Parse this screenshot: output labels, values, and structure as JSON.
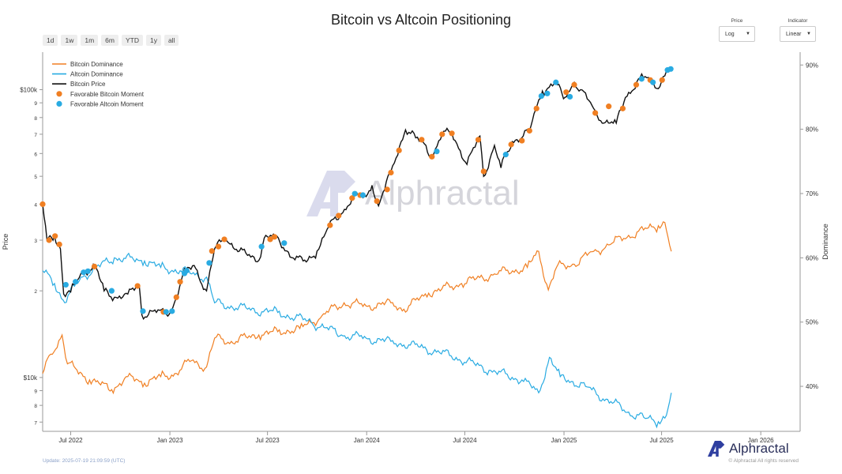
{
  "title": "Bitcoin vs Altcoin Positioning",
  "ranges": [
    "1d",
    "1w",
    "1m",
    "6m",
    "YTD",
    "1y",
    "all"
  ],
  "price_control": {
    "label": "Price",
    "value": "Log"
  },
  "indicator_control": {
    "label": "Indicator",
    "value": "Linear"
  },
  "footer": {
    "update": "Update: 2025-07-19 21:09:59 (UTC)",
    "brand": "Alphractal",
    "copyright": "© Alphractal All rights reserved"
  },
  "watermark": "Alphractal",
  "colors": {
    "bitcoin_dominance": "#f07f22",
    "altcoin_dominance": "#29abe2",
    "bitcoin_price": "#111111",
    "favorable_bitcoin": "#f07f22",
    "favorable_altcoin": "#29abe2"
  },
  "chart_data": {
    "type": "line",
    "title": "Bitcoin vs Altcoin Positioning",
    "ylabel_left": "Price",
    "ylabel_right": "Dominance",
    "y_left_scale": "log",
    "y_left_range": [
      6500,
      135000
    ],
    "y_right_range": [
      33,
      92
    ],
    "x_range": [
      "2022-05-10",
      "2026-03-15"
    ],
    "grid": false,
    "legend_position": "top-left",
    "x_ticks": [
      "Jul 2022",
      "Jan 2023",
      "Jul 2023",
      "Jan 2024",
      "Jul 2024",
      "Jan 2025",
      "Jul 2025",
      "Jan 2026"
    ],
    "y_left_ticks": [
      "$10k",
      "9",
      "8",
      "7",
      "$100k",
      "9",
      "8",
      "7",
      "6",
      "5",
      "4",
      "3",
      "2",
      "9",
      "8",
      "7"
    ],
    "y_right_ticks": [
      "90%",
      "80%",
      "70%",
      "60%",
      "50%",
      "40%"
    ],
    "legend": [
      "Bitcoin Dominance",
      "Altcoin Dominance",
      "Bitcoin Price",
      "Favorable Bitcoin Moment",
      "Favorable Altcoin Moment"
    ],
    "series": [
      {
        "name": "Bitcoin Price",
        "axis": "left",
        "points": [
          [
            "2022-05-10",
            40000
          ],
          [
            "2022-05-18",
            30000
          ],
          [
            "2022-06-01",
            31000
          ],
          [
            "2022-06-12",
            28000
          ],
          [
            "2022-06-18",
            19500
          ],
          [
            "2022-07-01",
            19800
          ],
          [
            "2022-07-20",
            23000
          ],
          [
            "2022-08-15",
            24500
          ],
          [
            "2022-09-01",
            20000
          ],
          [
            "2022-09-20",
            19000
          ],
          [
            "2022-10-15",
            19500
          ],
          [
            "2022-11-05",
            21000
          ],
          [
            "2022-11-10",
            16500
          ],
          [
            "2022-12-01",
            17000
          ],
          [
            "2022-12-31",
            16600
          ],
          [
            "2023-01-13",
            19000
          ],
          [
            "2023-01-25",
            22800
          ],
          [
            "2023-02-15",
            24500
          ],
          [
            "2023-03-10",
            20000
          ],
          [
            "2023-03-25",
            28000
          ],
          [
            "2023-04-14",
            30500
          ],
          [
            "2023-05-10",
            27500
          ],
          [
            "2023-06-15",
            25500
          ],
          [
            "2023-06-25",
            30500
          ],
          [
            "2023-07-15",
            31000
          ],
          [
            "2023-08-18",
            26000
          ],
          [
            "2023-09-11",
            25200
          ],
          [
            "2023-10-01",
            27500
          ],
          [
            "2023-10-23",
            33500
          ],
          [
            "2023-11-15",
            37000
          ],
          [
            "2023-12-05",
            42000
          ],
          [
            "2023-12-31",
            42500
          ],
          [
            "2024-01-11",
            46500
          ],
          [
            "2024-01-23",
            39500
          ],
          [
            "2024-02-15",
            52000
          ],
          [
            "2024-03-05",
            66000
          ],
          [
            "2024-03-13",
            72500
          ],
          [
            "2024-04-01",
            68000
          ],
          [
            "2024-04-20",
            64000
          ],
          [
            "2024-05-01",
            58000
          ],
          [
            "2024-05-20",
            70000
          ],
          [
            "2024-06-07",
            71000
          ],
          [
            "2024-07-05",
            55000
          ],
          [
            "2024-07-29",
            69000
          ],
          [
            "2024-08-05",
            50000
          ],
          [
            "2024-08-25",
            64000
          ],
          [
            "2024-09-06",
            53500
          ],
          [
            "2024-09-27",
            66000
          ],
          [
            "2024-10-29",
            72000
          ],
          [
            "2024-11-12",
            88000
          ],
          [
            "2024-11-22",
            99000
          ],
          [
            "2024-12-17",
            106000
          ],
          [
            "2024-12-31",
            93000
          ],
          [
            "2025-01-20",
            106000
          ],
          [
            "2025-02-01",
            100000
          ],
          [
            "2025-02-25",
            86000
          ],
          [
            "2025-03-10",
            78000
          ],
          [
            "2025-04-08",
            76500
          ],
          [
            "2025-04-25",
            94000
          ],
          [
            "2025-05-22",
            110000
          ],
          [
            "2025-06-10",
            109000
          ],
          [
            "2025-06-22",
            101000
          ],
          [
            "2025-07-01",
            107000
          ],
          [
            "2025-07-10",
            116000
          ],
          [
            "2025-07-19",
            118000
          ]
        ]
      },
      {
        "name": "Bitcoin Dominance",
        "axis": "right",
        "points": [
          [
            "2022-05-10",
            42
          ],
          [
            "2022-05-25",
            45
          ],
          [
            "2022-06-15",
            48
          ],
          [
            "2022-06-25",
            43.5
          ],
          [
            "2022-08-05",
            41
          ],
          [
            "2022-09-15",
            39.5
          ],
          [
            "2022-10-15",
            41.5
          ],
          [
            "2022-11-15",
            40.5
          ],
          [
            "2022-12-15",
            41.5
          ],
          [
            "2023-01-10",
            42
          ],
          [
            "2023-02-10",
            44
          ],
          [
            "2023-03-10",
            43
          ],
          [
            "2023-03-25",
            47.5
          ],
          [
            "2023-04-25",
            47
          ],
          [
            "2023-06-15",
            48
          ],
          [
            "2023-07-20",
            48.5
          ],
          [
            "2023-08-30",
            49
          ],
          [
            "2023-10-10",
            51
          ],
          [
            "2023-11-20",
            53
          ],
          [
            "2023-12-31",
            52.5
          ],
          [
            "2024-02-15",
            53
          ],
          [
            "2024-03-10",
            52
          ],
          [
            "2024-04-25",
            54.5
          ],
          [
            "2024-06-25",
            56
          ],
          [
            "2024-08-25",
            57.5
          ],
          [
            "2024-10-25",
            58.5
          ],
          [
            "2024-11-15",
            61
          ],
          [
            "2024-12-03",
            55
          ],
          [
            "2024-12-18",
            58.5
          ],
          [
            "2025-01-20",
            59
          ],
          [
            "2025-02-25",
            61
          ],
          [
            "2025-03-25",
            62
          ],
          [
            "2025-05-01",
            63.5
          ],
          [
            "2025-06-25",
            65
          ],
          [
            "2025-07-07",
            65.5
          ],
          [
            "2025-07-19",
            61
          ]
        ]
      },
      {
        "name": "Altcoin Dominance",
        "axis": "right",
        "points": [
          [
            "2022-05-10",
            58
          ],
          [
            "2022-06-01",
            56
          ],
          [
            "2022-06-20",
            53
          ],
          [
            "2022-07-20",
            57
          ],
          [
            "2022-09-20",
            60
          ],
          [
            "2022-11-15",
            59.5
          ],
          [
            "2022-12-15",
            58.5
          ],
          [
            "2023-01-20",
            58
          ],
          [
            "2023-03-10",
            57
          ],
          [
            "2023-03-25",
            53
          ],
          [
            "2023-05-25",
            52
          ],
          [
            "2023-07-20",
            51.5
          ],
          [
            "2023-09-20",
            50
          ],
          [
            "2023-11-15",
            48
          ],
          [
            "2023-12-31",
            47.5
          ],
          [
            "2024-02-15",
            47
          ],
          [
            "2024-04-15",
            46
          ],
          [
            "2024-06-15",
            44.5
          ],
          [
            "2024-08-15",
            42.5
          ],
          [
            "2024-10-15",
            41
          ],
          [
            "2024-11-15",
            39
          ],
          [
            "2024-12-05",
            44.5
          ],
          [
            "2024-12-25",
            41.5
          ],
          [
            "2025-02-10",
            40
          ],
          [
            "2025-03-20",
            38
          ],
          [
            "2025-05-01",
            36
          ],
          [
            "2025-06-01",
            35
          ],
          [
            "2025-06-25",
            34.5
          ],
          [
            "2025-07-10",
            35.5
          ],
          [
            "2025-07-19",
            39
          ]
        ]
      }
    ],
    "favorable_bitcoin_moments": [
      [
        "2022-05-10",
        40000
      ],
      [
        "2022-05-22",
        30000
      ],
      [
        "2022-06-02",
        31000
      ],
      [
        "2022-06-10",
        29000
      ],
      [
        "2022-08-14",
        24300
      ],
      [
        "2022-11-02",
        20800
      ],
      [
        "2022-12-20",
        16900
      ],
      [
        "2023-01-13",
        19000
      ],
      [
        "2023-01-20",
        21500
      ],
      [
        "2023-03-20",
        27500
      ],
      [
        "2023-04-01",
        28500
      ],
      [
        "2023-04-12",
        30200
      ],
      [
        "2023-07-06",
        30200
      ],
      [
        "2023-07-14",
        30800
      ],
      [
        "2023-10-25",
        33800
      ],
      [
        "2023-11-10",
        36500
      ],
      [
        "2023-12-05",
        42000
      ],
      [
        "2023-12-20",
        43000
      ],
      [
        "2024-01-20",
        41000
      ],
      [
        "2024-02-08",
        45000
      ],
      [
        "2024-02-15",
        51500
      ],
      [
        "2024-03-01",
        61500
      ],
      [
        "2024-04-12",
        67000
      ],
      [
        "2024-05-01",
        58500
      ],
      [
        "2024-05-20",
        70000
      ],
      [
        "2024-06-07",
        70500
      ],
      [
        "2024-07-26",
        67000
      ],
      [
        "2024-08-05",
        52000
      ],
      [
        "2024-09-25",
        64500
      ],
      [
        "2024-10-15",
        66500
      ],
      [
        "2024-10-29",
        72000
      ],
      [
        "2024-11-11",
        86000
      ],
      [
        "2025-01-05",
        98000
      ],
      [
        "2025-01-20",
        104000
      ],
      [
        "2025-02-28",
        83000
      ],
      [
        "2025-03-25",
        87500
      ],
      [
        "2025-04-20",
        86000
      ],
      [
        "2025-05-15",
        104000
      ],
      [
        "2025-06-10",
        108000
      ],
      [
        "2025-07-02",
        108000
      ]
    ],
    "favorable_altcoin_moments": [
      [
        "2022-06-22",
        21000
      ],
      [
        "2022-07-10",
        21500
      ],
      [
        "2022-07-25",
        23200
      ],
      [
        "2022-08-02",
        23400
      ],
      [
        "2022-09-15",
        20000
      ],
      [
        "2022-11-12",
        17000
      ],
      [
        "2022-12-25",
        16900
      ],
      [
        "2023-01-05",
        17000
      ],
      [
        "2023-01-28",
        23000
      ],
      [
        "2023-02-01",
        23500
      ],
      [
        "2023-03-15",
        25000
      ],
      [
        "2023-06-20",
        28500
      ],
      [
        "2023-08-01",
        29300
      ],
      [
        "2023-12-10",
        43500
      ],
      [
        "2023-12-25",
        43000
      ],
      [
        "2024-05-10",
        61000
      ],
      [
        "2024-09-15",
        59500
      ],
      [
        "2024-11-20",
        95000
      ],
      [
        "2024-12-01",
        97000
      ],
      [
        "2024-12-17",
        106000
      ],
      [
        "2025-01-12",
        94500
      ],
      [
        "2025-05-25",
        109000
      ],
      [
        "2025-06-15",
        106000
      ],
      [
        "2025-07-12",
        117000
      ],
      [
        "2025-07-18",
        118000
      ]
    ]
  }
}
